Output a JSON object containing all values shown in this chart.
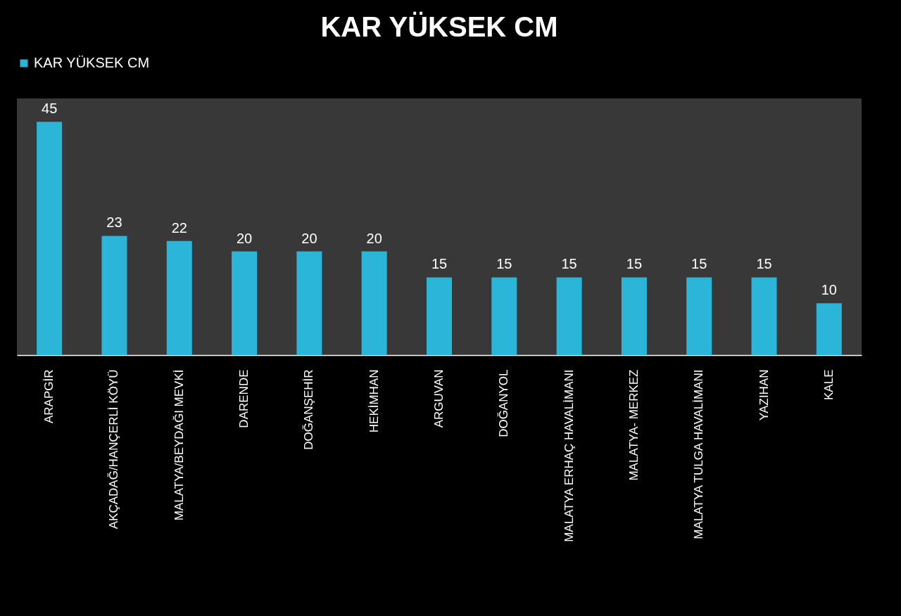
{
  "chart_data": {
    "type": "bar",
    "title": "KAR YÜKSEK CM",
    "categories": [
      "ARAPGİR",
      "AKÇADAĞ/HANÇERLİ KÖYÜ",
      "MALATYA/BEYDAĞI MEVKİ",
      "DARENDE",
      "DOĞANŞEHİR",
      "HEKİMHAN",
      "ARGUVAN",
      "DOĞANYOL",
      "MALATYA ERHAÇ HAVALİMANI",
      "MALATYA- MERKEZ",
      "MALATYA TULGA HAVALİMANI",
      "YAZIHAN",
      "KALE"
    ],
    "series": [
      {
        "name": "KAR YÜKSEK CM",
        "color": "#2bb5d8",
        "values": [
          45,
          23,
          22,
          20,
          20,
          20,
          15,
          15,
          15,
          15,
          15,
          15,
          10
        ]
      }
    ],
    "data_labels": true,
    "legend": "top",
    "grid": false
  }
}
